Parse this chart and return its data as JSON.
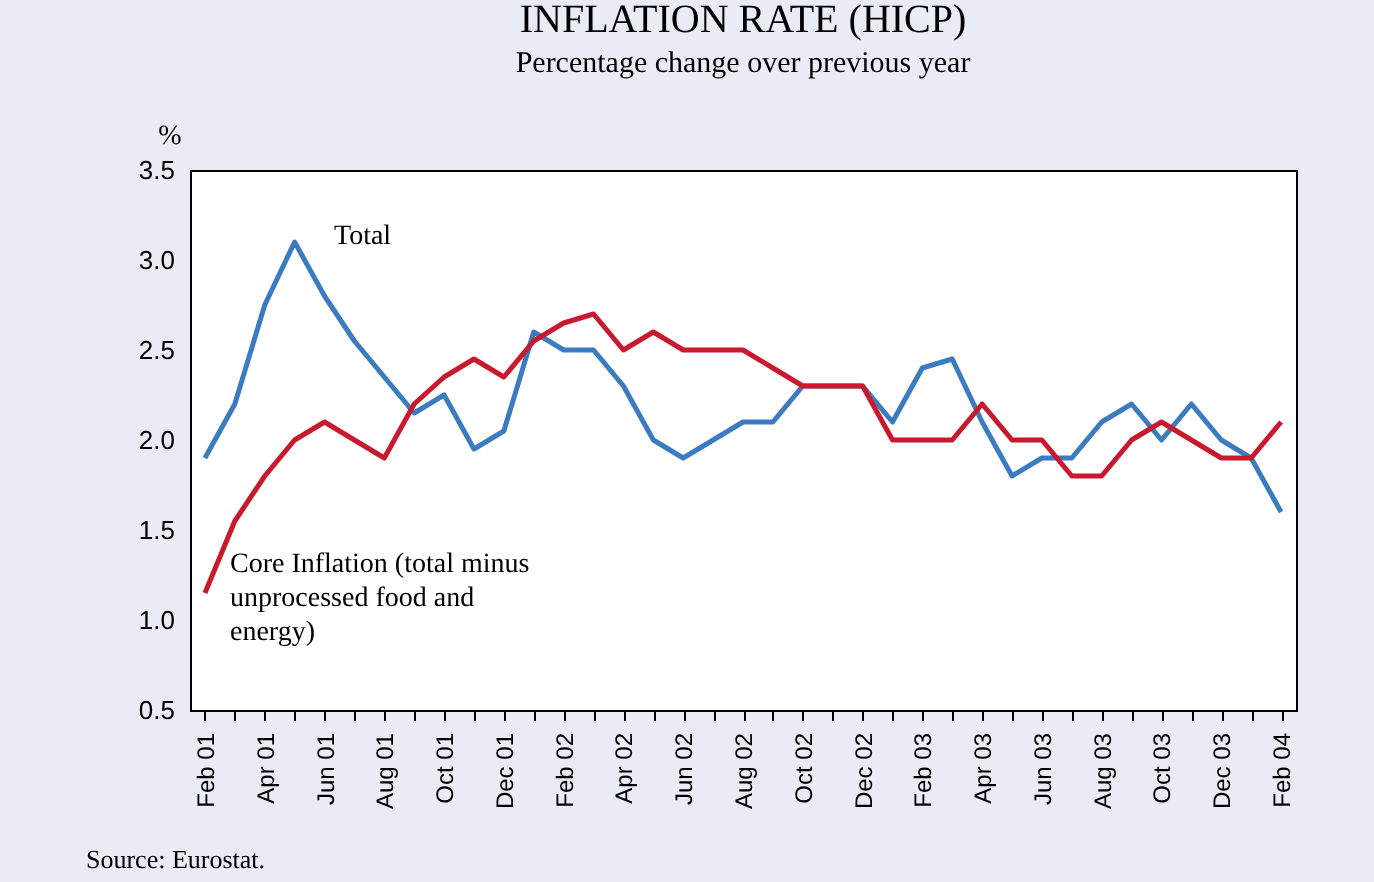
{
  "chart_data": {
    "type": "line",
    "title": "INFLATION RATE (HICP)",
    "subtitle": "Percentage change over previous year",
    "ylabel": "%",
    "categories": [
      "Feb 01",
      null,
      "Apr 01",
      null,
      "Jun 01",
      null,
      "Aug 01",
      null,
      "Oct 01",
      null,
      "Dec 01",
      null,
      "Feb 02",
      null,
      "Apr 02",
      null,
      "Jun 02",
      null,
      "Aug 02",
      null,
      "Oct 02",
      null,
      "Dec 02",
      null,
      "Feb 03",
      null,
      "Apr 03",
      null,
      "Jun 03",
      null,
      "Aug 03",
      null,
      "Oct 03",
      null,
      "Dec 03",
      null,
      "Feb 04"
    ],
    "series": [
      {
        "name": "Total",
        "color": "#3b7bbf",
        "values": [
          1.9,
          2.2,
          2.75,
          3.1,
          2.8,
          2.55,
          2.35,
          2.15,
          2.25,
          1.95,
          2.05,
          2.6,
          2.5,
          2.5,
          2.3,
          2.0,
          1.9,
          2.0,
          2.1,
          2.1,
          2.3,
          2.3,
          2.3,
          2.1,
          2.4,
          2.45,
          2.1,
          1.8,
          1.9,
          1.9,
          2.1,
          2.2,
          2.0,
          2.2,
          2.0,
          1.9,
          1.6
        ]
      },
      {
        "name": "Core Inflation (total minus unprocessed food and energy)",
        "color": "#c8192e",
        "values": [
          1.15,
          1.55,
          1.8,
          2.0,
          2.1,
          2.0,
          1.9,
          2.2,
          2.35,
          2.45,
          2.35,
          2.55,
          2.65,
          2.7,
          2.5,
          2.6,
          2.5,
          2.5,
          2.5,
          2.4,
          2.3,
          2.3,
          2.3,
          2.0,
          2.0,
          2.0,
          2.2,
          2.0,
          2.0,
          1.8,
          1.8,
          2.0,
          2.1,
          2.0,
          1.9,
          1.9,
          2.1
        ]
      }
    ],
    "ylim": [
      0.5,
      3.5
    ],
    "yticks": [
      {
        "value": 0.5,
        "label": "0.5"
      },
      {
        "value": 1,
        "label": "1.0"
      },
      {
        "value": 1.5,
        "label": "1.5"
      },
      {
        "value": 2,
        "label": "2.0"
      },
      {
        "value": 2.5,
        "label": "2.5"
      },
      {
        "value": 3,
        "label": "3.0"
      },
      {
        "value": 3.5,
        "label": "3.5"
      }
    ],
    "grid": false,
    "legend": false,
    "line_style": "solid",
    "marker": "none",
    "annotations": [
      "Source: Eurostat."
    ]
  }
}
